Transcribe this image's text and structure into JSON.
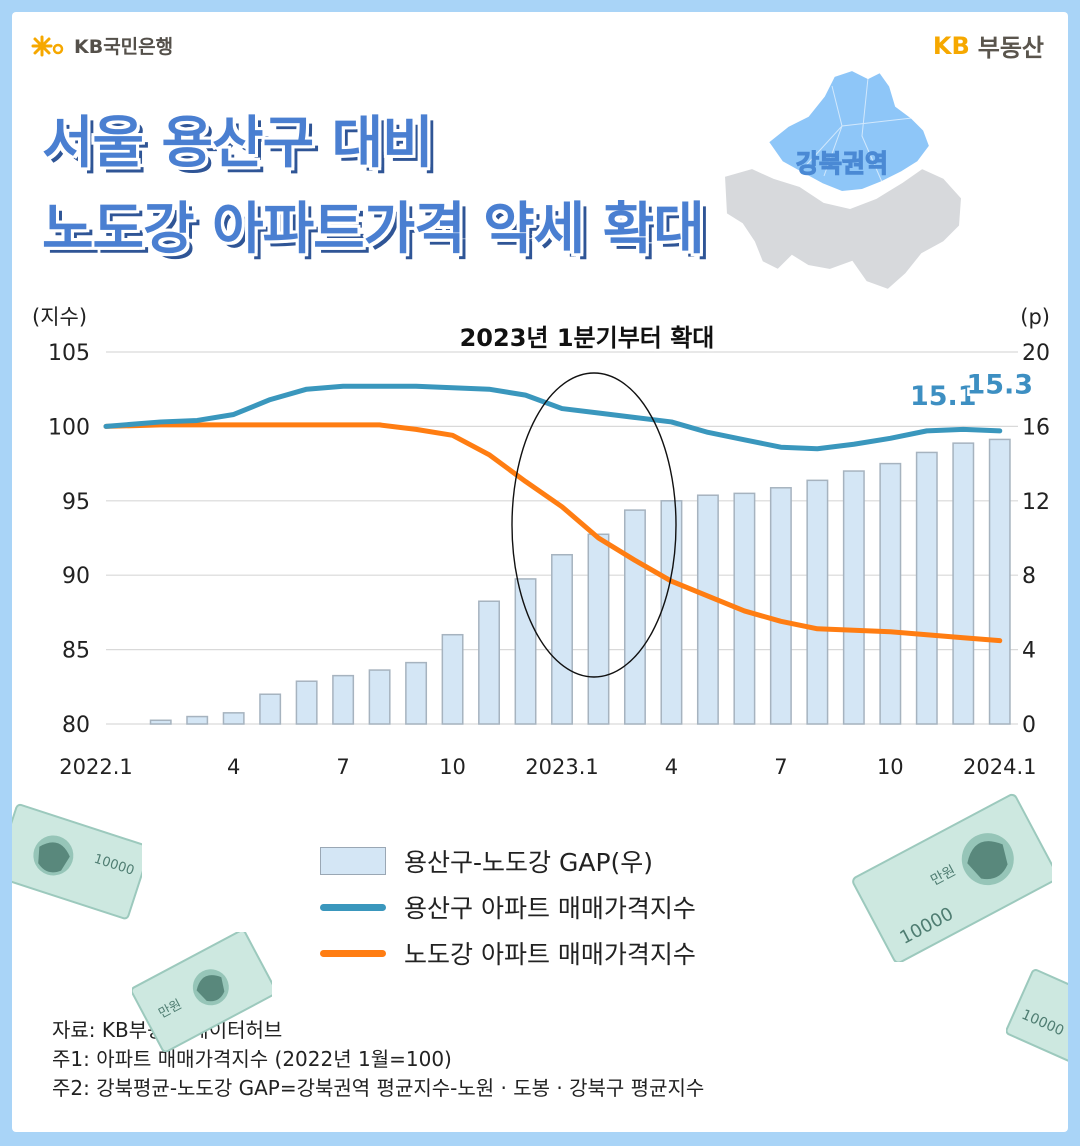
{
  "brand_left": "KB국민은행",
  "brand_right": {
    "kb": "KB",
    "name": "부동산"
  },
  "title": {
    "line1": "서울 용산구 대비",
    "line2": "노도강 아파트가격 약세 확대"
  },
  "map_label": "강북권역",
  "colors": {
    "gap_bar": "#d4e6f5",
    "yongsan_line": "#3a97bd",
    "nodogang_line": "#ff7d12",
    "title": "#4a7fd1",
    "map_highlight": "#8ec6f8",
    "map_rest": "#d7d9dc"
  },
  "chart_data": {
    "type": "bar",
    "annotation": "2023년 1분기부터 확대",
    "left_axis": {
      "label": "(지수)",
      "ylim": [
        80,
        105
      ],
      "ticks": [
        80,
        85,
        90,
        95,
        100,
        105
      ]
    },
    "right_axis": {
      "label": "(p)",
      "ylim": [
        0,
        20
      ],
      "ticks": [
        0,
        4,
        8,
        12,
        16,
        20
      ]
    },
    "x_tick_labels": [
      {
        "index": 0,
        "label": "2022.1"
      },
      {
        "index": 3,
        "label": "4"
      },
      {
        "index": 6,
        "label": "7"
      },
      {
        "index": 9,
        "label": "10"
      },
      {
        "index": 12,
        "label": "2023.1"
      },
      {
        "index": 15,
        "label": "4"
      },
      {
        "index": 18,
        "label": "7"
      },
      {
        "index": 21,
        "label": "10"
      },
      {
        "index": 24,
        "label": "2024.1"
      }
    ],
    "series": [
      {
        "name": "용산구-노도강 GAP(우)",
        "type": "bar",
        "axis": "right",
        "values": [
          0,
          0.2,
          0.4,
          0.6,
          1.6,
          2.3,
          2.6,
          2.9,
          3.3,
          4.8,
          6.6,
          7.8,
          9.1,
          10.2,
          11.5,
          12.0,
          12.3,
          12.4,
          12.7,
          13.1,
          13.6,
          14.0,
          14.6,
          15.1,
          15.3
        ],
        "labels": [
          {
            "index": 23,
            "text": "15.1"
          },
          {
            "index": 24,
            "text": "15.3"
          }
        ]
      },
      {
        "name": "용산구 아파트 매매가격지수",
        "type": "line",
        "axis": "left",
        "values": [
          100,
          100.3,
          100.4,
          100.8,
          101.8,
          102.5,
          102.7,
          102.7,
          102.7,
          102.6,
          102.5,
          102.1,
          101.2,
          100.9,
          100.6,
          100.3,
          99.6,
          99.1,
          98.6,
          98.5,
          98.8,
          99.2,
          99.7,
          99.8,
          99.7
        ]
      },
      {
        "name": "노도강 아파트 매매가격지수",
        "type": "line",
        "axis": "left",
        "values": [
          100,
          100.1,
          100.1,
          100.1,
          100.1,
          100.1,
          100.1,
          100.1,
          99.8,
          99.4,
          98.1,
          96.3,
          94.6,
          92.5,
          91.0,
          89.6,
          88.6,
          87.6,
          86.9,
          86.4,
          86.3,
          86.2,
          86.0,
          85.8,
          85.6
        ]
      }
    ]
  },
  "notes": [
    "자료: KB부동산 데이터허브",
    "주1: 아파트 매매가격지수 (2022년 1월=100)",
    "주2: 강북평균-노도강 GAP=강북권역 평균지수-노원 · 도봉 · 강북구 평균지수"
  ],
  "bill_value": "10000",
  "bill_unit": "만원"
}
